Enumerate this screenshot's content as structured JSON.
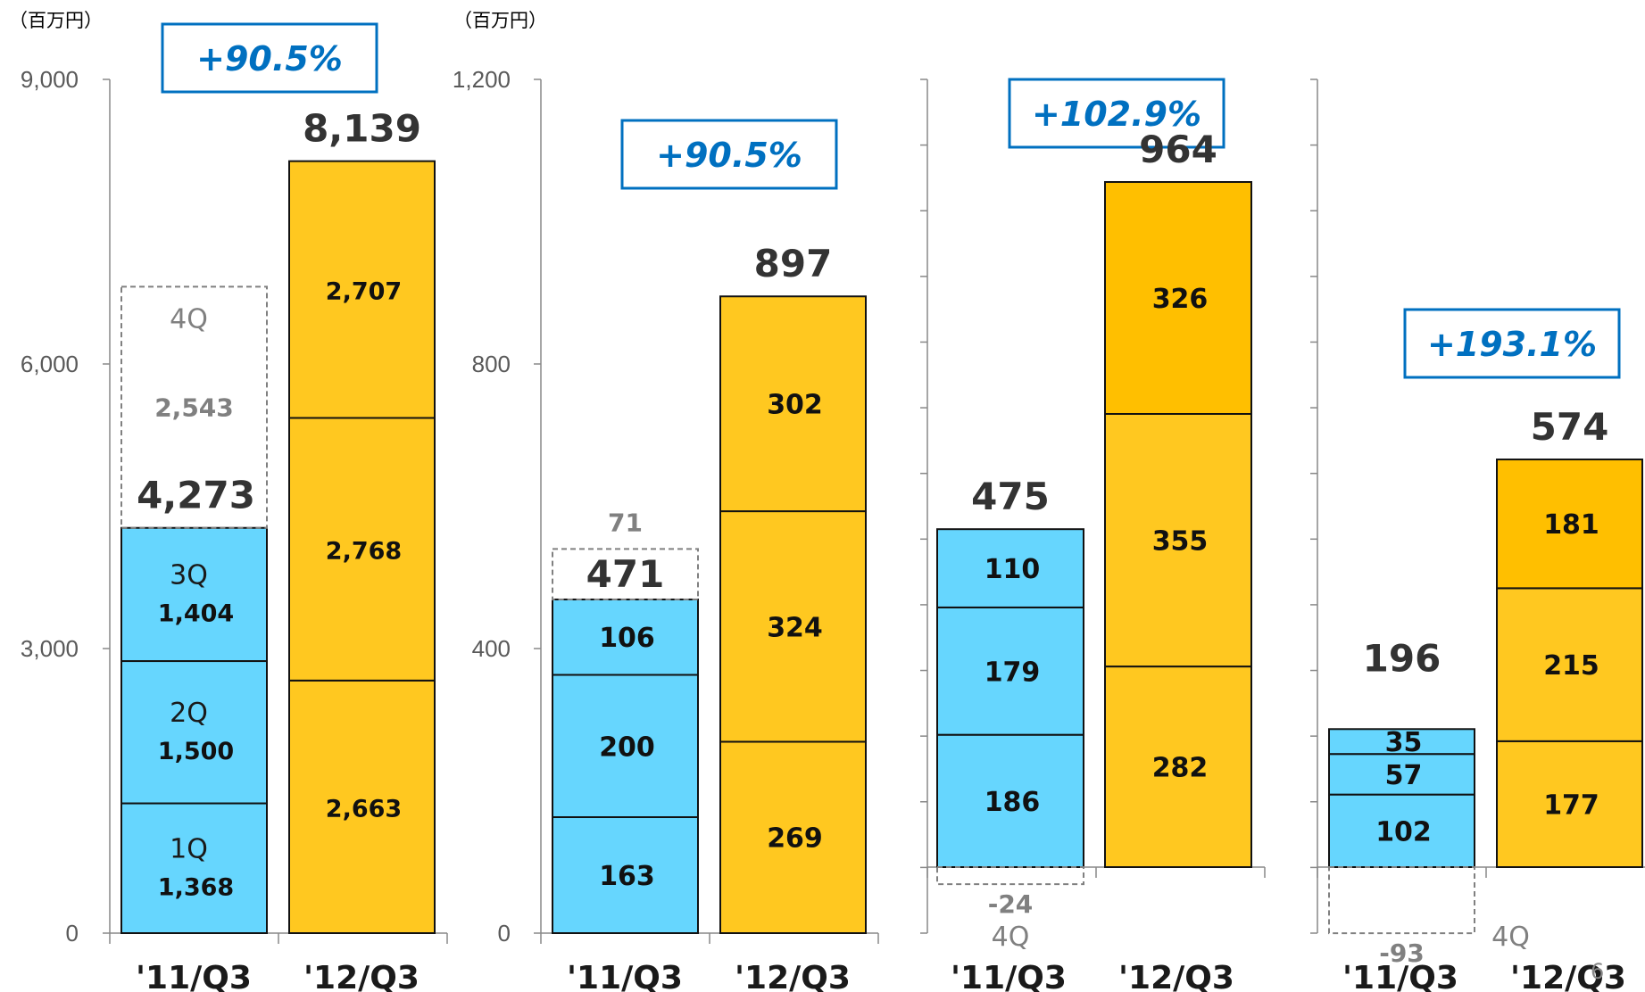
{
  "page_number": "6",
  "colors": {
    "fy11": "#66d6fe",
    "fy12": "#ffc820",
    "fy12_top": "#ffbf00",
    "growth": "#0070c0",
    "ghost": "#808080"
  },
  "chart_data": [
    {
      "type": "bar",
      "stacked": true,
      "unit": "（百万円）",
      "yticks": [
        "0",
        "3,000",
        "6,000",
        "9,000"
      ],
      "ylim": [
        0,
        9000
      ],
      "growth": "+90.5%",
      "bars": [
        {
          "category": "'11/Q3",
          "total": "4,273",
          "segments": [
            {
              "name": "1Q",
              "value": 1368,
              "label": "1,368"
            },
            {
              "name": "2Q",
              "value": 1500,
              "label": "1,500"
            },
            {
              "name": "3Q",
              "value": 1404,
              "label": "1,404"
            }
          ],
          "projection": {
            "name": "4Q",
            "value": 2543,
            "label": "2,543"
          }
        },
        {
          "category": "'12/Q3",
          "total": "8,139",
          "segments": [
            {
              "value": 2663,
              "label": "2,663"
            },
            {
              "value": 2768,
              "label": "2,768"
            },
            {
              "value": 2707,
              "label": "2,707"
            }
          ]
        }
      ]
    },
    {
      "type": "bar",
      "stacked": true,
      "unit": "（百万円）",
      "yticks": [
        "0",
        "400",
        "800",
        "1,200"
      ],
      "ylim": [
        0,
        1200
      ],
      "growth": "+90.5%",
      "bars": [
        {
          "category": "'11/Q3",
          "total": "471",
          "segments": [
            {
              "value": 163,
              "label": "163"
            },
            {
              "value": 200,
              "label": "200"
            },
            {
              "value": 106,
              "label": "106"
            }
          ],
          "projection": {
            "value": 71,
            "label": "71"
          }
        },
        {
          "category": "'12/Q3",
          "total": "897",
          "segments": [
            {
              "value": 269,
              "label": "269"
            },
            {
              "value": 324,
              "label": "324"
            },
            {
              "value": 302,
              "label": "302"
            }
          ]
        }
      ]
    },
    {
      "type": "bar",
      "stacked": true,
      "ylim": [
        -100,
        1200
      ],
      "growth": "+102.9%",
      "bars": [
        {
          "category": "'11/Q3",
          "total": "475",
          "segments": [
            {
              "value": 186,
              "label": "186"
            },
            {
              "value": 179,
              "label": "179"
            },
            {
              "value": 110,
              "label": "110"
            }
          ],
          "projection": {
            "name": "4Q",
            "value": -24,
            "label": "-24"
          }
        },
        {
          "category": "'12/Q3",
          "total": "964",
          "segments": [
            {
              "value": 282,
              "label": "282"
            },
            {
              "value": 355,
              "label": "355"
            },
            {
              "value": 326,
              "label": "326"
            }
          ]
        }
      ]
    },
    {
      "type": "bar",
      "stacked": true,
      "ylim": [
        -100,
        1200
      ],
      "growth": "+193.1%",
      "bars": [
        {
          "category": "'11/Q3",
          "total": "196",
          "segments": [
            {
              "value": 102,
              "label": "102"
            },
            {
              "value": 57,
              "label": "57"
            },
            {
              "value": 35,
              "label": "35"
            }
          ],
          "projection": {
            "name": "4Q",
            "value": -93,
            "label": "-93"
          }
        },
        {
          "category": "'12/Q3",
          "total": "574",
          "segments": [
            {
              "value": 177,
              "label": "177"
            },
            {
              "value": 215,
              "label": "215"
            },
            {
              "value": 181,
              "label": "181"
            }
          ]
        }
      ]
    }
  ]
}
